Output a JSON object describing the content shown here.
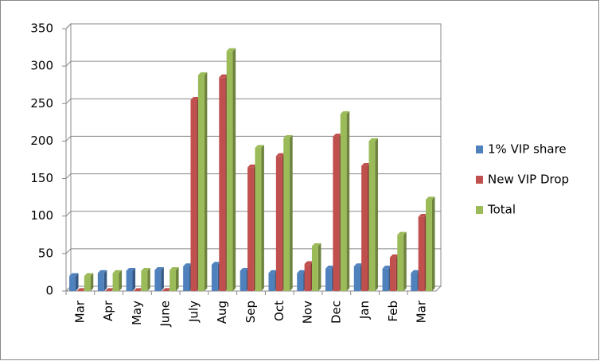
{
  "chart_data": {
    "type": "bar",
    "categories": [
      "Mar",
      "Apr",
      "May",
      "June",
      "July",
      "Aug",
      "Sep",
      "Oct",
      "Nov",
      "Dec",
      "Jan",
      "Feb",
      "Mar"
    ],
    "series": [
      {
        "name": "1% VIP share",
        "color": "#4f81bd",
        "values": [
          20,
          24,
          27,
          28,
          33,
          35,
          27,
          24,
          24,
          30,
          33,
          30,
          24
        ]
      },
      {
        "name": "New VIP Drop",
        "color": "#c0504d",
        "values": [
          0,
          0,
          0,
          0,
          255,
          285,
          165,
          180,
          36,
          206,
          167,
          45,
          99
        ]
      },
      {
        "name": "Total",
        "color": "#9bbb59",
        "values": [
          20,
          24,
          27,
          28,
          288,
          320,
          191,
          204,
          60,
          236,
          200,
          75,
          122
        ]
      }
    ],
    "ylim": [
      0,
      350
    ],
    "yticks": [
      0,
      50,
      100,
      150,
      200,
      250,
      300,
      350
    ],
    "grid": true,
    "legend": "right"
  }
}
